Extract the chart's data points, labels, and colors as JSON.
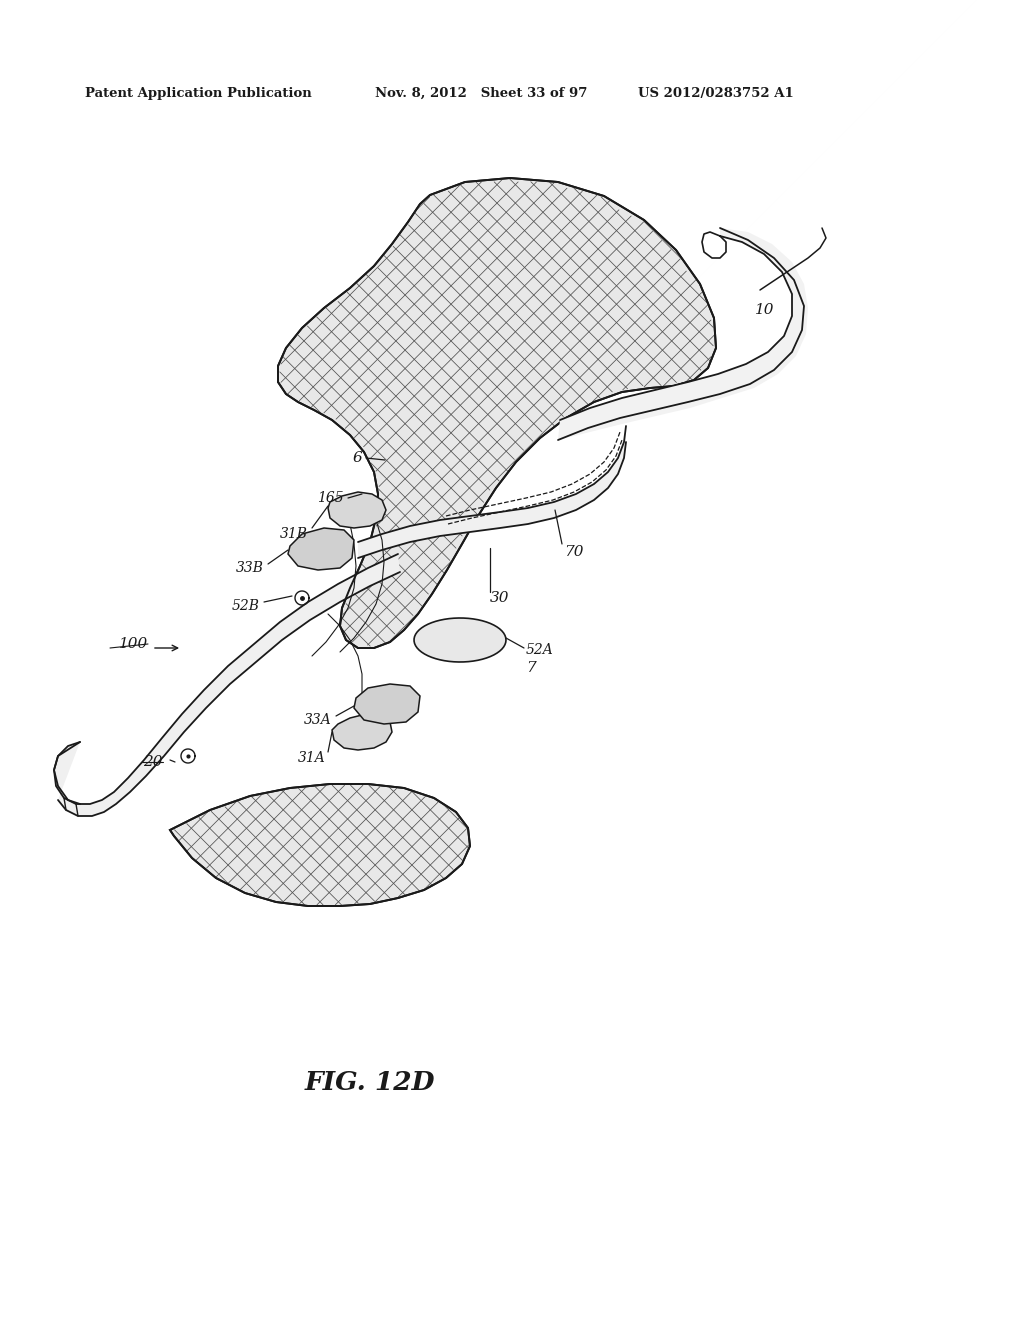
{
  "bg_color": "#ffffff",
  "header_left": "Patent Application Publication",
  "header_mid": "Nov. 8, 2012   Sheet 33 of 97",
  "header_right": "US 2012/0283752 A1",
  "fig_label": "FIG. 12D",
  "line_color": "#1a1a1a",
  "hatch_color": "#555555",
  "fill_color": "#ececec"
}
